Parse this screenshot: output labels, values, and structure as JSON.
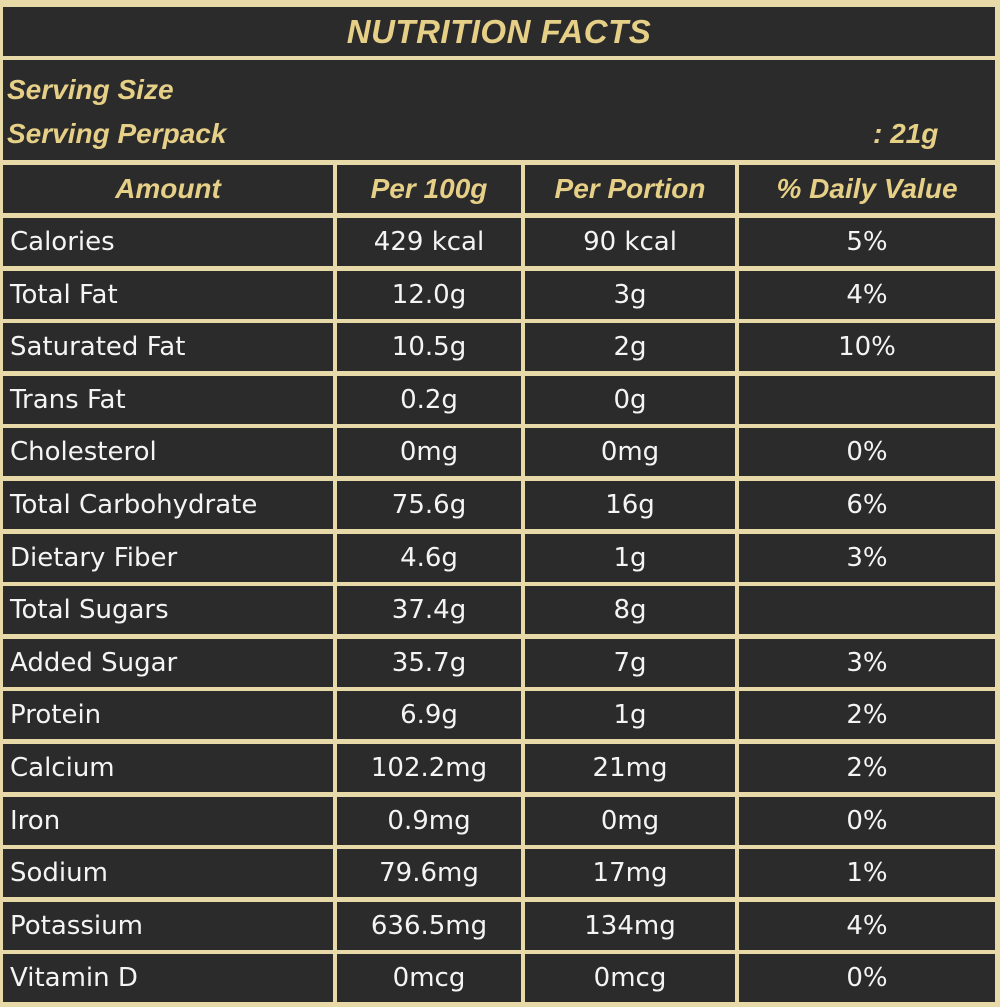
{
  "title": "NUTRITION FACTS",
  "serving": {
    "size_label": "Serving Size",
    "perpack_label": "Serving Perpack",
    "value": ": 21g"
  },
  "columns": [
    "Amount",
    "Per 100g",
    "Per Portion",
    "% Daily Value"
  ],
  "rows": [
    {
      "name": "Calories",
      "per100": "429 kcal",
      "portion": "90 kcal",
      "dv": "5%"
    },
    {
      "name": "Total Fat",
      "per100": "12.0g",
      "portion": "3g",
      "dv": "4%"
    },
    {
      "name": "Saturated Fat",
      "per100": "10.5g",
      "portion": "2g",
      "dv": "10%"
    },
    {
      "name": "Trans Fat",
      "per100": "0.2g",
      "portion": "0g",
      "dv": ""
    },
    {
      "name": "Cholesterol",
      "per100": "0mg",
      "portion": "0mg",
      "dv": "0%"
    },
    {
      "name": "Total Carbohydrate",
      "per100": "75.6g",
      "portion": "16g",
      "dv": "6%"
    },
    {
      "name": "Dietary Fiber",
      "per100": "4.6g",
      "portion": "1g",
      "dv": "3%"
    },
    {
      "name": "Total Sugars",
      "per100": "37.4g",
      "portion": "8g",
      "dv": ""
    },
    {
      "name": "Added Sugar",
      "per100": "35.7g",
      "portion": "7g",
      "dv": "3%"
    },
    {
      "name": "Protein",
      "per100": "6.9g",
      "portion": "1g",
      "dv": "2%"
    },
    {
      "name": "Calcium",
      "per100": "102.2mg",
      "portion": "21mg",
      "dv": "2%"
    },
    {
      "name": "Iron",
      "per100": "0.9mg",
      "portion": "0mg",
      "dv": "0%"
    },
    {
      "name": "Sodium",
      "per100": "79.6mg",
      "portion": "17mg",
      "dv": "1%"
    },
    {
      "name": "Potassium",
      "per100": "636.5mg",
      "portion": "134mg",
      "dv": "4%"
    },
    {
      "name": "Vitamin D",
      "per100": "0mcg",
      "portion": "0mcg",
      "dv": "0%"
    }
  ],
  "colors": {
    "background": "#2b2b2b",
    "border": "#e8d9a8",
    "heading_text": "#e6cf86",
    "body_text": "#f4f4f4"
  }
}
